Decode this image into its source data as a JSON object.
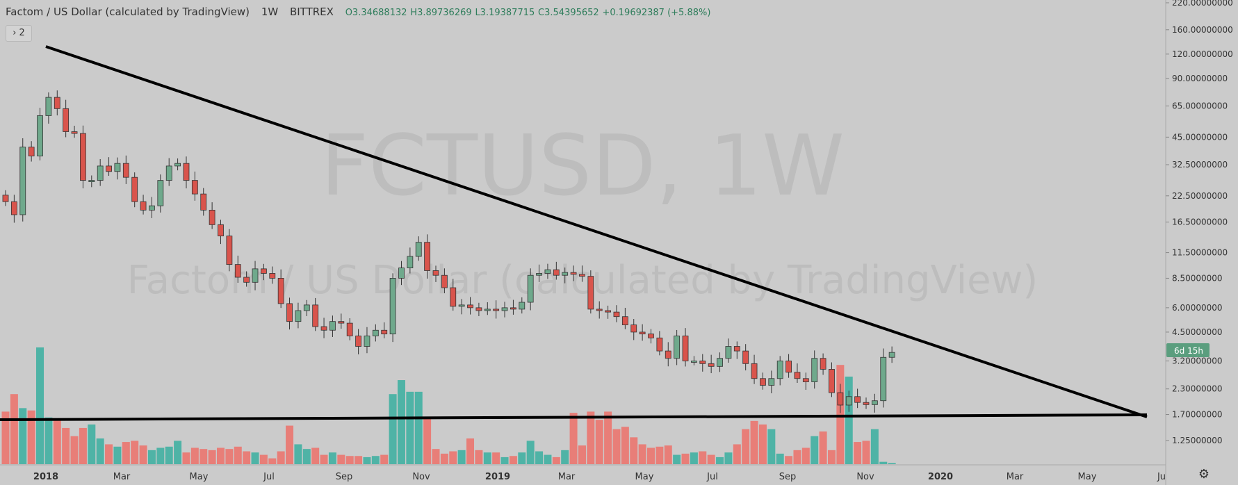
{
  "header": {
    "title": "Factom / US Dollar (calculated by TradingView)",
    "interval": "1W",
    "exchange": "BITTREX",
    "open": "O3.34688132",
    "high": "H3.89736269",
    "low": "L3.19387715",
    "close": "C3.54395652",
    "change": "+0.19692387 (+5.88%)"
  },
  "collapsed_indicators": {
    "label": "› 2"
  },
  "watermark": {
    "symbol": "FCTUSD, 1W",
    "description": "Factom / US Dollar (calculated by TradingView)"
  },
  "price_badge": "6d 15h",
  "settings_icon": "gear-icon",
  "colors": {
    "up": "#6fa98c",
    "down": "#d9544c",
    "up_volume": "#4fb3a6",
    "down_volume": "#e87e78",
    "trendline": "#000000",
    "price_badge": "#5a9e7e"
  },
  "chart_data": {
    "type": "candlestick",
    "scale": "log",
    "interval": "1W",
    "x_ticks": [
      "2018",
      "Mar",
      "May",
      "Jul",
      "Sep",
      "Nov",
      "2019",
      "Mar",
      "May",
      "Jul",
      "Sep",
      "Nov",
      "2020",
      "Mar",
      "May",
      "Ju"
    ],
    "y_ticks": [
      "220.00000000",
      "160.00000000",
      "120.00000000",
      "90.00000000",
      "65.00000000",
      "45.00000000",
      "32.50000000",
      "22.50000000",
      "16.50000000",
      "11.50000000",
      "8.50000000",
      "6.00000000",
      "4.50000000",
      "3.20000000",
      "2.30000000",
      "1.70000000",
      "1.25000000"
    ],
    "y_values": [
      220,
      160,
      120,
      90,
      65,
      45,
      32.5,
      22.5,
      16.5,
      11.5,
      8.5,
      6.0,
      4.5,
      3.2,
      2.3,
      1.7,
      1.25
    ],
    "weekly_close_estimate": [
      21,
      18,
      40,
      36,
      58,
      72,
      63,
      48,
      47,
      27,
      27,
      32,
      30,
      33,
      28,
      21,
      19,
      20,
      27,
      32,
      33,
      27,
      23,
      19,
      16,
      14,
      10,
      8.6,
      8.1,
      9.5,
      9.0,
      8.5,
      6.3,
      5.1,
      5.8,
      6.2,
      4.8,
      4.6,
      5.1,
      5.0,
      4.3,
      3.8,
      4.3,
      4.6,
      4.4,
      8.5,
      9.6,
      11,
      13,
      9.3,
      8.8,
      7.6,
      6.1,
      6.2,
      6.0,
      5.8,
      5.9,
      5.8,
      6.0,
      5.9,
      6.4,
      8.8,
      9.0,
      9.4,
      8.8,
      9.1,
      8.9,
      8.7,
      5.9,
      5.8,
      5.7,
      5.4,
      4.9,
      4.5,
      4.4,
      4.2,
      3.6,
      3.3,
      4.3,
      3.2,
      3.2,
      3.1,
      3.0,
      3.3,
      3.8,
      3.6,
      3.1,
      2.6,
      2.4,
      2.6,
      3.2,
      2.8,
      2.6,
      2.5,
      3.3,
      2.9,
      2.2,
      1.9,
      2.1,
      1.96,
      1.91,
      2.0,
      3.34,
      3.54
    ],
    "weekly_volume_relative": [
      0.45,
      0.6,
      0.48,
      0.46,
      1.0,
      0.4,
      0.38,
      0.31,
      0.24,
      0.31,
      0.34,
      0.22,
      0.17,
      0.15,
      0.19,
      0.2,
      0.16,
      0.12,
      0.14,
      0.15,
      0.2,
      0.1,
      0.14,
      0.13,
      0.12,
      0.14,
      0.13,
      0.15,
      0.11,
      0.1,
      0.08,
      0.05,
      0.11,
      0.33,
      0.17,
      0.13,
      0.14,
      0.08,
      0.1,
      0.08,
      0.07,
      0.07,
      0.06,
      0.07,
      0.08,
      0.6,
      0.72,
      0.62,
      0.62,
      0.4,
      0.13,
      0.09,
      0.11,
      0.12,
      0.22,
      0.12,
      0.1,
      0.1,
      0.06,
      0.07,
      0.1,
      0.2,
      0.11,
      0.08,
      0.06,
      0.12,
      0.44,
      0.16,
      0.45,
      0.38,
      0.45,
      0.3,
      0.32,
      0.23,
      0.17,
      0.14,
      0.15,
      0.16,
      0.08,
      0.09,
      0.1,
      0.11,
      0.08,
      0.06,
      0.1,
      0.17,
      0.3,
      0.37,
      0.34,
      0.3,
      0.09,
      0.07,
      0.12,
      0.14,
      0.24,
      0.28,
      0.12,
      0.85,
      0.75,
      0.19,
      0.2,
      0.3,
      0.02,
      0.01
    ]
  }
}
